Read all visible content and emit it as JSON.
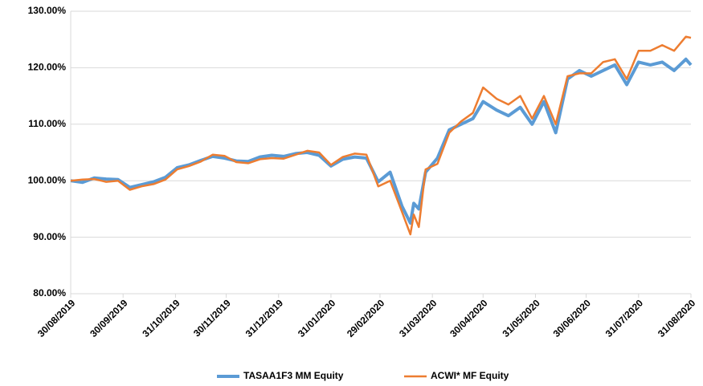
{
  "chart_data": {
    "type": "line",
    "x": [
      "30/08/2019",
      "06/09/2019",
      "13/09/2019",
      "20/09/2019",
      "27/09/2019",
      "04/10/2019",
      "11/10/2019",
      "18/10/2019",
      "25/10/2019",
      "01/11/2019",
      "08/11/2019",
      "15/11/2019",
      "22/11/2019",
      "29/11/2019",
      "06/12/2019",
      "13/12/2019",
      "20/12/2019",
      "27/12/2019",
      "03/01/2020",
      "10/01/2020",
      "17/01/2020",
      "24/01/2020",
      "31/01/2020",
      "07/02/2020",
      "14/02/2020",
      "21/02/2020",
      "28/02/2020",
      "06/03/2020",
      "13/03/2020",
      "18/03/2020",
      "20/03/2020",
      "23/03/2020",
      "27/03/2020",
      "03/04/2020",
      "10/04/2020",
      "17/04/2020",
      "24/04/2020",
      "30/04/2020",
      "08/05/2020",
      "15/05/2020",
      "22/05/2020",
      "29/05/2020",
      "05/06/2020",
      "12/06/2020",
      "19/06/2020",
      "26/06/2020",
      "03/07/2020",
      "10/07/2020",
      "17/07/2020",
      "24/07/2020",
      "31/07/2020",
      "07/08/2020",
      "14/08/2020",
      "21/08/2020",
      "28/08/2020",
      "31/08/2020"
    ],
    "series": [
      {
        "name": "TASAA1F3 MM Equity",
        "color": "#5b9bd5",
        "values": [
          100,
          99.7,
          100.5,
          100.3,
          100.2,
          98.8,
          99.3,
          99.8,
          100.6,
          102.3,
          102.8,
          103.6,
          104.3,
          104.0,
          103.5,
          103.4,
          104.2,
          104.5,
          104.3,
          104.8,
          105.0,
          104.5,
          102.6,
          103.8,
          104.2,
          104.0,
          99.8,
          101.5,
          95.5,
          92.5,
          96.0,
          95.0,
          101.5,
          104.0,
          109.0,
          110.0,
          111.0,
          114.0,
          112.5,
          111.5,
          113.0,
          110.0,
          114.0,
          108.5,
          118.0,
          119.5,
          118.5,
          119.5,
          120.5,
          117.0,
          121.0,
          120.5,
          121.0,
          119.5,
          121.5,
          120.5
        ]
      },
      {
        "name": "ACWI* MF Equity",
        "color": "#ed7d31",
        "values": [
          100,
          100.2,
          100.3,
          99.8,
          100.0,
          98.4,
          99.0,
          99.4,
          100.2,
          102.0,
          102.6,
          103.4,
          104.6,
          104.4,
          103.3,
          103.1,
          103.8,
          104.0,
          103.9,
          104.6,
          105.3,
          105.0,
          102.8,
          104.2,
          104.8,
          104.6,
          99.0,
          100.0,
          94.5,
          90.5,
          94.0,
          91.8,
          102.0,
          103.0,
          108.5,
          110.5,
          112.0,
          116.5,
          114.5,
          113.5,
          115.0,
          111.0,
          115.0,
          110.0,
          118.5,
          119.0,
          119.0,
          121.0,
          121.5,
          118.0,
          123.0,
          123.0,
          124.0,
          123.0,
          125.5,
          125.3
        ]
      }
    ],
    "xlim": [
      "30/08/2019",
      "31/08/2020"
    ],
    "xticks": [
      "30/08/2019",
      "30/09/2019",
      "31/10/2019",
      "30/11/2019",
      "31/12/2019",
      "31/01/2020",
      "29/02/2020",
      "31/03/2020",
      "30/04/2020",
      "31/05/2020",
      "30/06/2020",
      "31/07/2020",
      "31/08/2020"
    ],
    "ylim": [
      80,
      130
    ],
    "yticks": [
      {
        "value": 80,
        "label": "80.00%"
      },
      {
        "value": 90,
        "label": "90.00%"
      },
      {
        "value": 100,
        "label": "100.00%"
      },
      {
        "value": 110,
        "label": "110.00%"
      },
      {
        "value": 120,
        "label": "120.00%"
      },
      {
        "value": 130,
        "label": "130.00%"
      }
    ],
    "grid": true,
    "legend": "bottom"
  }
}
